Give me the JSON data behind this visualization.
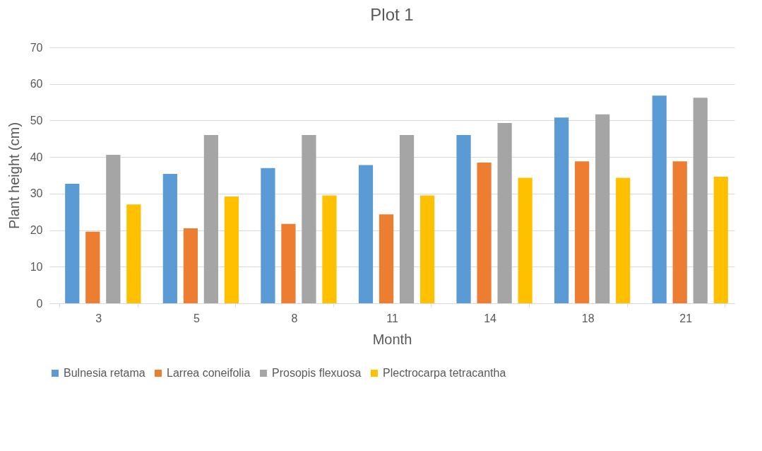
{
  "chart_data": {
    "type": "bar",
    "title": "Plot 1",
    "xlabel": "Month",
    "ylabel": "Plant height (cm)",
    "categories": [
      "3",
      "5",
      "8",
      "11",
      "14",
      "18",
      "21"
    ],
    "series": [
      {
        "name": "Bulnesia retama",
        "color": "#5b9bd5",
        "values": [
          32.7,
          35.4,
          37,
          37.8,
          46,
          50.8,
          56.8
        ]
      },
      {
        "name": "Larrea coneifolia",
        "color": "#ed7d31",
        "values": [
          19.6,
          20.5,
          21.7,
          24.3,
          38.5,
          38.8,
          38.8
        ]
      },
      {
        "name": "Prosopis flexuosa",
        "color": "#a5a5a5",
        "values": [
          40.6,
          46,
          46,
          46,
          49.3,
          51.7,
          56.2
        ]
      },
      {
        "name": "Plectrocarpa tetracantha",
        "color": "#ffc000",
        "values": [
          27,
          29.2,
          29.5,
          29.5,
          34.3,
          34.3,
          34.6
        ]
      }
    ],
    "ylim": [
      0,
      70
    ],
    "yticks": [
      0,
      10,
      20,
      30,
      40,
      50,
      60,
      70
    ],
    "grid": "y",
    "legend": "bottom"
  }
}
